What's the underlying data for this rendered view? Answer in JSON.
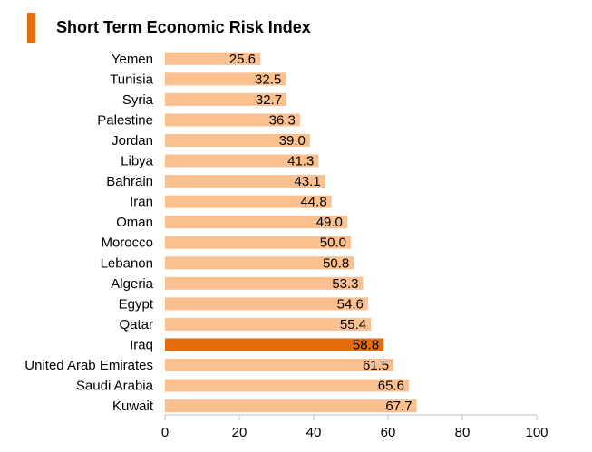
{
  "chart_data": {
    "type": "bar",
    "orientation": "horizontal",
    "title": "Short Term Economic Risk Index",
    "categories": [
      "Yemen",
      "Tunisia",
      "Syria",
      "Palestine",
      "Jordan",
      "Libya",
      "Bahrain",
      "Iran",
      "Oman",
      "Morocco",
      "Lebanon",
      "Algeria",
      "Egypt",
      "Qatar",
      "Iraq",
      "United Arab Emirates",
      "Saudi Arabia",
      "Kuwait"
    ],
    "values": [
      25.6,
      32.5,
      32.7,
      36.3,
      39.0,
      41.3,
      43.1,
      44.8,
      49.0,
      50.0,
      50.8,
      53.3,
      54.6,
      55.4,
      58.8,
      61.5,
      65.6,
      67.7
    ],
    "value_labels": [
      "25.6",
      "32.5",
      "32.7",
      "36.3",
      "39.0",
      "41.3",
      "43.1",
      "44.8",
      "49.0",
      "50.0",
      "50.8",
      "53.3",
      "54.6",
      "55.4",
      "58.8",
      "61.5",
      "65.6",
      "67.7"
    ],
    "highlight": "Iraq",
    "xlim": [
      0,
      100
    ],
    "xticks": [
      "0",
      "20",
      "40",
      "60",
      "80",
      "100"
    ],
    "grid": false,
    "colors": {
      "bar": "#fac090",
      "highlight": "#e46c0a",
      "accent": "#e46c0a",
      "axis": "#bfbfbf"
    }
  }
}
